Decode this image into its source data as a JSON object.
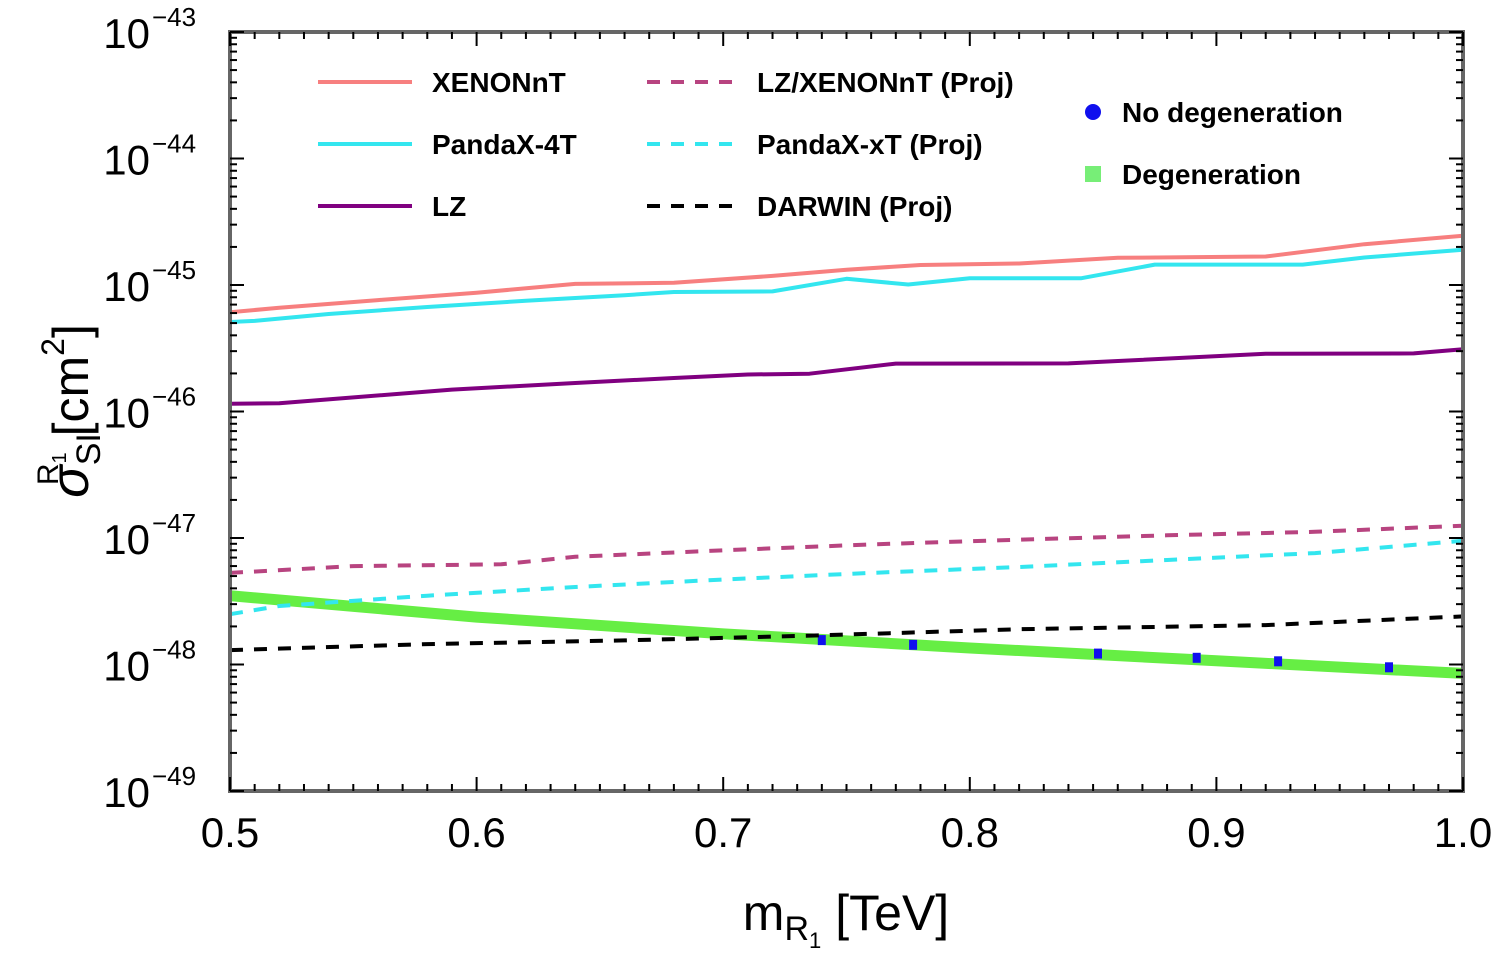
{
  "chart_data": {
    "type": "line",
    "title": "",
    "xlabel": {
      "main": "m",
      "sub": "R",
      "subsub": "1",
      "unit": "[TeV]"
    },
    "ylabel": {
      "main": "σ",
      "sub": "SI",
      "sup": "R",
      "supsub": "1",
      "unit_open": "[cm",
      "unit_sup": "2",
      "unit_close": "]"
    },
    "xlim": [
      0.5,
      1.0
    ],
    "ylim_log10": [
      -49,
      -43
    ],
    "xticks": [
      0.5,
      0.6,
      0.7,
      0.8,
      0.9,
      1.0
    ],
    "xtick_labels": [
      "0.5",
      "0.6",
      "0.7",
      "0.8",
      "0.9",
      "1.0"
    ],
    "yticks_log10": [
      -49,
      -48,
      -47,
      -46,
      -45,
      -44,
      -43
    ],
    "ytick_base": "10",
    "ytick_exponents": [
      "−49",
      "−48",
      "−47",
      "−46",
      "−45",
      "−44",
      "−43"
    ],
    "grid": false,
    "series": [
      {
        "name": "XENONnT",
        "color": "#f77f7f",
        "style": "solid",
        "x": [
          0.5,
          0.52,
          0.56,
          0.6,
          0.64,
          0.68,
          0.72,
          0.75,
          0.78,
          0.82,
          0.86,
          0.92,
          0.96,
          1.0
        ],
        "y": [
          6.1e-46,
          6.6e-46,
          7.6e-46,
          8.7e-46,
          1.02e-45,
          1.04e-45,
          1.18e-45,
          1.32e-45,
          1.44e-45,
          1.48e-45,
          1.64e-45,
          1.68e-45,
          2.1e-45,
          2.45e-45
        ]
      },
      {
        "name": "PandaX-4T",
        "color": "#33e6ef",
        "style": "solid",
        "x": [
          0.5,
          0.51,
          0.54,
          0.58,
          0.62,
          0.66,
          0.68,
          0.72,
          0.75,
          0.775,
          0.8,
          0.845,
          0.875,
          0.935,
          0.96,
          1.0
        ],
        "y": [
          5.1e-46,
          5.2e-46,
          5.9e-46,
          6.7e-46,
          7.5e-46,
          8.3e-46,
          8.8e-46,
          8.9e-46,
          1.12e-45,
          1.01e-45,
          1.13e-45,
          1.13e-45,
          1.45e-45,
          1.45e-45,
          1.65e-45,
          1.9e-45
        ]
      },
      {
        "name": "LZ",
        "color": "#800080",
        "style": "solid",
        "x": [
          0.5,
          0.52,
          0.59,
          0.64,
          0.68,
          0.71,
          0.735,
          0.77,
          0.84,
          0.92,
          0.98,
          1.0
        ],
        "y": [
          1.15e-46,
          1.16e-46,
          1.49e-46,
          1.68e-46,
          1.84e-46,
          1.96e-46,
          1.99e-46,
          2.39e-46,
          2.4e-46,
          2.86e-46,
          2.88e-46,
          3.1e-46
        ]
      },
      {
        "name": "LZ/XENONnT (Proj)",
        "color": "#b84480",
        "style": "dashed",
        "x": [
          0.5,
          0.55,
          0.61,
          0.64,
          0.7,
          0.76,
          0.82,
          0.88,
          0.94,
          1.0
        ],
        "y": [
          5.3e-48,
          6e-48,
          6.2e-48,
          7.1e-48,
          8e-48,
          8.9e-48,
          9.7e-48,
          1.05e-47,
          1.12e-47,
          1.25e-47
        ]
      },
      {
        "name": "PandaX-xT (Proj)",
        "color": "#33e6ef",
        "style": "dashed",
        "x": [
          0.5,
          0.52,
          0.58,
          0.64,
          0.7,
          0.76,
          0.82,
          0.88,
          0.94,
          1.0
        ],
        "y": [
          2.5e-48,
          2.9e-48,
          3.5e-48,
          4.1e-48,
          4.7e-48,
          5.3e-48,
          5.9e-48,
          6.7e-48,
          7.6e-48,
          9.5e-48
        ]
      },
      {
        "name": "DARWIN (Proj)",
        "color": "#000000",
        "style": "dashed",
        "x": [
          0.5,
          0.58,
          0.66,
          0.74,
          0.82,
          0.92,
          1.0
        ],
        "y": [
          1.3e-48,
          1.45e-48,
          1.55e-48,
          1.7e-48,
          1.9e-48,
          2.05e-48,
          2.4e-48
        ]
      },
      {
        "name": "Degeneration",
        "color": "#66ee44",
        "style": "band",
        "x": [
          0.5,
          0.6,
          0.7,
          0.8,
          0.9,
          1.0
        ],
        "y": [
          3.5e-48,
          2.37e-48,
          1.75e-48,
          1.35e-48,
          1.07e-48,
          8.5e-49
        ]
      },
      {
        "name": "No degeneration",
        "color": "#1010ee",
        "style": "points",
        "x": [
          0.74,
          0.777,
          0.852,
          0.892,
          0.925,
          0.97
        ],
        "y": [
          1.56e-48,
          1.43e-48,
          1.22e-48,
          1.13e-48,
          1.06e-48,
          9.5e-49
        ]
      }
    ],
    "legend": {
      "placement": "top",
      "lines": [
        {
          "label": "XENONnT",
          "color": "#f77f7f",
          "style": "solid"
        },
        {
          "label": "PandaX-4T",
          "color": "#33e6ef",
          "style": "solid"
        },
        {
          "label": "LZ",
          "color": "#800080",
          "style": "solid"
        },
        {
          "label": "LZ/XENONnT (Proj)",
          "color": "#b84480",
          "style": "dashed"
        },
        {
          "label": "PandaX-xT (Proj)",
          "color": "#33e6ef",
          "style": "dashed"
        },
        {
          "label": "DARWIN (Proj)",
          "color": "#000000",
          "style": "dashed"
        }
      ],
      "markers": [
        {
          "label": "No degeneration",
          "color": "#1010ee",
          "shape": "circle"
        },
        {
          "label": "Degeneration",
          "color": "#77ee77",
          "shape": "square"
        }
      ]
    }
  }
}
